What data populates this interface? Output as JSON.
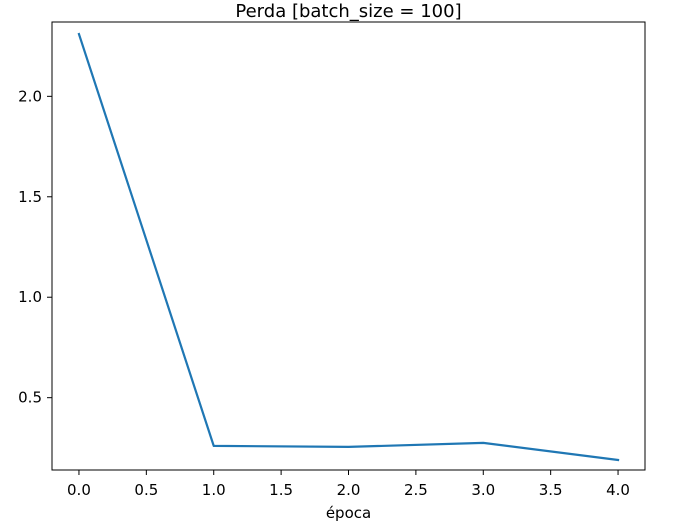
{
  "chart_data": {
    "type": "line",
    "title": "Perda [batch_size = 100]",
    "xlabel": "época",
    "ylabel": "",
    "xlim": [
      -0.2,
      4.2
    ],
    "ylim": [
      0.14,
      2.37
    ],
    "x_ticks": [
      0.0,
      0.5,
      1.0,
      1.5,
      2.0,
      2.5,
      3.0,
      3.5,
      4.0
    ],
    "x_tick_labels": [
      "0.0",
      "0.5",
      "1.0",
      "1.5",
      "2.0",
      "2.5",
      "3.0",
      "3.5",
      "4.0"
    ],
    "y_ticks": [
      0.5,
      1.0,
      1.5,
      2.0
    ],
    "y_tick_labels": [
      "0.5",
      "1.0",
      "1.5",
      "2.0"
    ],
    "grid": false,
    "series": [
      {
        "color": "#1f77b4",
        "x": [
          0,
          1,
          2,
          3,
          4
        ],
        "values": [
          2.31,
          0.26,
          0.255,
          0.275,
          0.19
        ]
      }
    ]
  }
}
